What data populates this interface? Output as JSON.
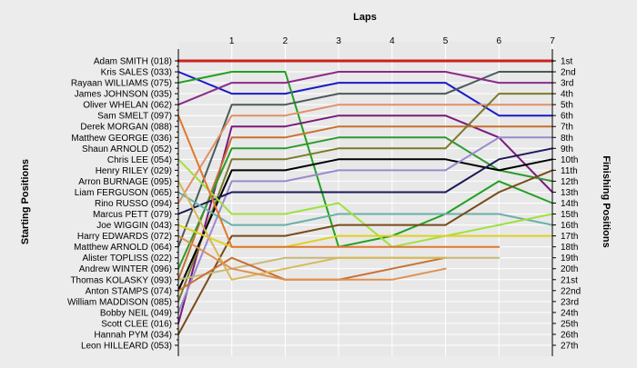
{
  "chart_data": {
    "type": "line",
    "title": "Laps",
    "ylabel_left": "Starting Positions",
    "ylabel_right": "Finishing Positions",
    "x": [
      0,
      1,
      2,
      3,
      4,
      5,
      6,
      7
    ],
    "xlim": [
      0,
      7
    ],
    "x_tick_labels": [
      "1",
      "2",
      "3",
      "4",
      "5",
      "6",
      "7"
    ],
    "ylim": [
      1,
      27
    ],
    "grid": true,
    "starting_grid": [
      "Adam SMITH (018)",
      "Kris SALES (033)",
      "Rayaan WILLIAMS (075)",
      "James JOHNSON (035)",
      "Oliver WHELAN (062)",
      "Sam SMELT (097)",
      "Derek MORGAN (088)",
      "Matthew GEORGE (036)",
      "Shaun ARNOLD (052)",
      "Chris LEE (054)",
      "Henry RILEY (029)",
      "Arron BURNAGE (095)",
      "Liam FERGUSON (065)",
      "Rino RUSSO (094)",
      "Marcus PETT (079)",
      "Joe WIGGIN (043)",
      "Harry EDWARDS (072)",
      "Matthew ARNOLD (064)",
      "Alister TOPLISS (022)",
      "Andrew WINTER (096)",
      "Thomas KOLASKY (093)",
      "Anton STAMPS (074)",
      "William MADDISON (085)",
      "Bobby NEIL (049)",
      "Scott CLEE (016)",
      "Hannah PYM (034)",
      "Leon HILLEARD (053)"
    ],
    "finishing_labels": [
      "1st",
      "2nd",
      "3rd",
      "4th",
      "5th",
      "6th",
      "7th",
      "8th",
      "9th",
      "10th",
      "11th",
      "12th",
      "13th",
      "14th",
      "15th",
      "16th",
      "17th",
      "18th",
      "19th",
      "20th",
      "21st",
      "22nd",
      "23rd",
      "24th",
      "25th",
      "26th",
      "27th"
    ],
    "series": [
      {
        "color": "#cc2222",
        "width": 3,
        "positions": [
          1,
          1,
          1,
          1,
          1,
          1,
          1,
          1
        ]
      },
      {
        "color": "#1a1ac8",
        "width": 2,
        "positions": [
          2,
          4,
          4,
          3,
          3,
          3,
          6,
          6
        ]
      },
      {
        "color": "#22a022",
        "width": 2,
        "positions": [
          3,
          2,
          2,
          18,
          17,
          15,
          12,
          14
        ]
      },
      {
        "color": "#4a5a5a",
        "width": 2,
        "positions": [
          18,
          5,
          5,
          4,
          4,
          4,
          2,
          2
        ]
      },
      {
        "color": "#8a2a8a",
        "width": 2,
        "positions": [
          5,
          3,
          3,
          2,
          2,
          2,
          3,
          3
        ]
      },
      {
        "color": "#e0906a",
        "width": 2,
        "positions": [
          14,
          6,
          6,
          5,
          5,
          5,
          5,
          5
        ]
      },
      {
        "color": "#7a1a7a",
        "width": 2,
        "positions": [
          25,
          7,
          7,
          6,
          6,
          6,
          8,
          13
        ]
      },
      {
        "color": "#c87030",
        "width": 2,
        "positions": [
          21,
          8,
          8,
          7,
          7,
          7,
          7,
          7
        ]
      },
      {
        "color": "#2e9a2e",
        "width": 2,
        "positions": [
          20,
          9,
          9,
          8,
          8,
          8,
          11,
          12
        ]
      },
      {
        "color": "#7a7a2a",
        "width": 2,
        "positions": [
          23,
          10,
          10,
          9,
          9,
          9,
          4,
          4
        ]
      },
      {
        "color": "#000000",
        "width": 2,
        "positions": [
          22,
          11,
          11,
          10,
          10,
          10,
          11,
          10
        ]
      },
      {
        "color": "#9a8acc",
        "width": 2,
        "positions": [
          24,
          12,
          12,
          11,
          11,
          11,
          8,
          8
        ]
      },
      {
        "color": "#1a1a5a",
        "width": 2,
        "positions": [
          15,
          13,
          13,
          13,
          13,
          13,
          10,
          9
        ]
      },
      {
        "color": "#6ab0a8",
        "width": 2,
        "positions": [
          13,
          16,
          16,
          15,
          15,
          15,
          15,
          16
        ]
      },
      {
        "color": "#a0e040",
        "width": 2,
        "positions": [
          10,
          15,
          15,
          14,
          18,
          17,
          16,
          15
        ]
      },
      {
        "color": "#7a4a1a",
        "width": 2,
        "positions": [
          26,
          17,
          17,
          16,
          16,
          16,
          13,
          11
        ]
      },
      {
        "color": "#e0d020",
        "width": 2,
        "positions": [
          16,
          18,
          18,
          17,
          17,
          17,
          17,
          17
        ]
      },
      {
        "color": "#e07830",
        "width": 2,
        "positions": [
          6,
          18,
          18,
          18,
          18,
          18,
          18
        ]
      },
      {
        "color": "#c8b878",
        "width": 2,
        "positions": [
          21,
          20,
          19,
          19,
          19,
          19,
          19
        ]
      },
      {
        "color": "#c87030",
        "width": 2,
        "positions": [
          22,
          19,
          21,
          21,
          20,
          19
        ]
      },
      {
        "color": "#d8b858",
        "width": 2,
        "positions": [
          12,
          21,
          20,
          19,
          19,
          19
        ]
      },
      {
        "color": "#e09050",
        "width": 2,
        "positions": [
          17,
          20,
          21,
          21,
          21,
          20
        ]
      }
    ]
  }
}
